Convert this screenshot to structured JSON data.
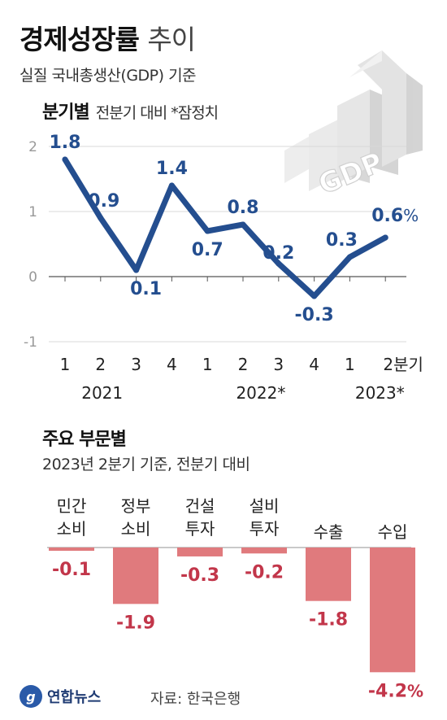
{
  "header": {
    "title_bold": "경제성장률",
    "title_light": "추이",
    "subtitle": "실질 국내총생산(GDP) 기준"
  },
  "quarterly": {
    "section_bold": "분기별",
    "section_note": "전분기 대비  *잠정치",
    "unit_suffix": "%"
  },
  "sectors": {
    "section_title": "주요 부문별",
    "section_sub": "2023년 2분기 기준, 전분기 대비"
  },
  "footer": {
    "logo_text": "연합뉴스",
    "source": "자료: 한국은행"
  },
  "decor": {
    "gdp_graphic_text": "GDP"
  },
  "colors": {
    "line": "#244e8f",
    "bars": "#e07a7d",
    "bar_label": "#c2364a",
    "label_blue": "#244e8f"
  },
  "chart_data": [
    {
      "type": "line",
      "categories": [
        "1",
        "2",
        "3",
        "4",
        "1",
        "2",
        "3",
        "4",
        "1",
        "2분기"
      ],
      "year_labels": [
        "2021",
        "2022*",
        "2023*"
      ],
      "year_groups": [
        [
          0,
          3
        ],
        [
          4,
          7
        ],
        [
          8,
          9
        ]
      ],
      "values": [
        1.8,
        0.9,
        0.1,
        1.4,
        0.7,
        0.8,
        0.2,
        -0.3,
        0.3,
        0.6
      ],
      "value_labels": [
        "1.8",
        "0.9",
        "0.1",
        "1.4",
        "0.7",
        "0.8",
        "0.2",
        "-0.3",
        "0.3",
        "0.6"
      ],
      "ylim": [
        -1,
        2
      ],
      "yticks": [
        "-1",
        "0",
        "1",
        "2"
      ],
      "grid": true
    },
    {
      "type": "bar",
      "categories": [
        "민간\n소비",
        "정부\n소비",
        "건설\n투자",
        "설비\n투자",
        "수출",
        "수입"
      ],
      "values": [
        -0.1,
        -1.9,
        -0.3,
        -0.2,
        -1.8,
        -4.2
      ],
      "value_labels": [
        "-0.1",
        "-1.9",
        "-0.3",
        "-0.2",
        "-1.8",
        "-4.2"
      ],
      "last_suffix": "%"
    }
  ]
}
